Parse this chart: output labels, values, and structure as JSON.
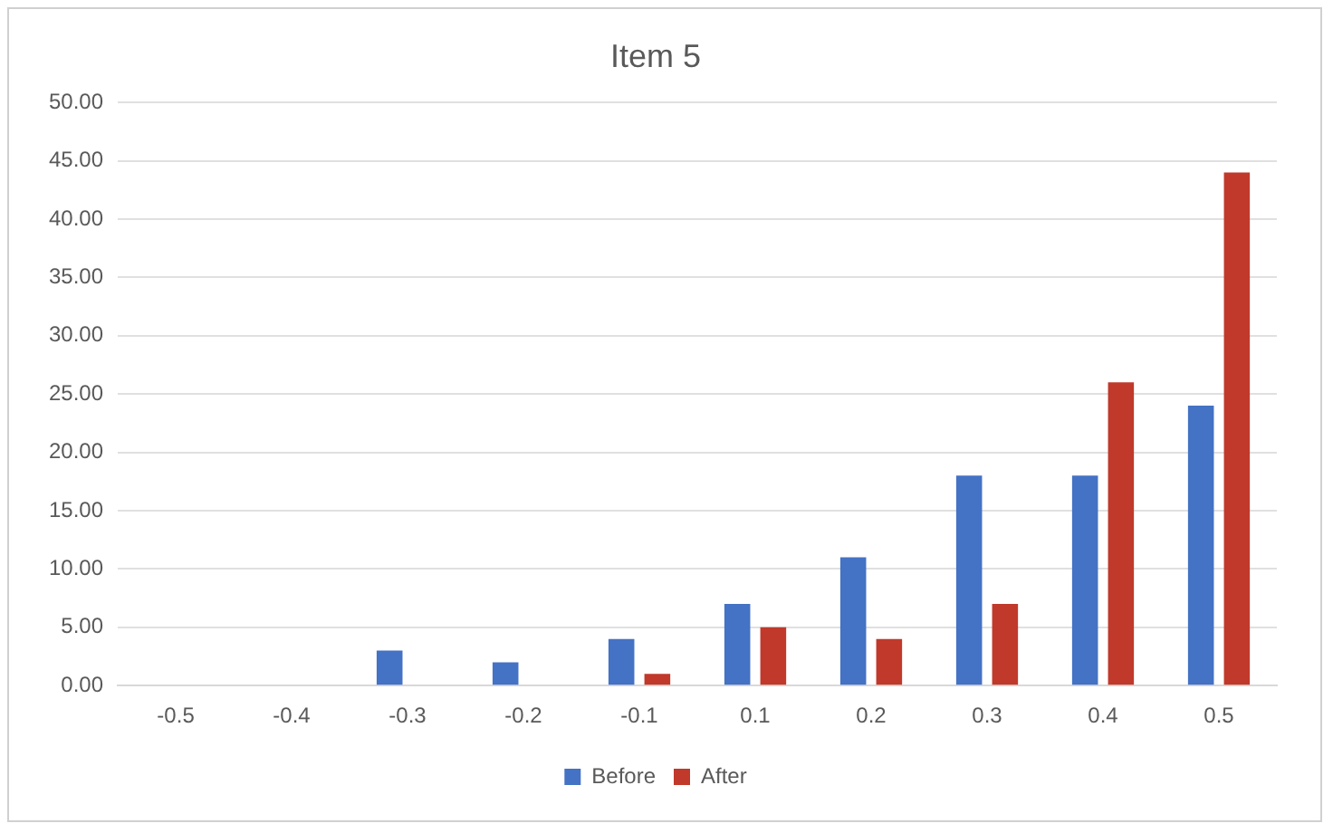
{
  "chart_data": {
    "type": "bar",
    "title": "Item 5",
    "categories": [
      "-0.5",
      "-0.4",
      "-0.3",
      "-0.2",
      "-0.1",
      "0.1",
      "0.2",
      "0.3",
      "0.4",
      "0.5"
    ],
    "series": [
      {
        "name": "Before",
        "color": "#4472c4",
        "values": [
          0,
          0,
          3,
          2,
          4,
          7,
          11,
          18,
          18,
          24
        ]
      },
      {
        "name": "After",
        "color": "#c0392b",
        "values": [
          0,
          0,
          0,
          0,
          1,
          5,
          4,
          7,
          26,
          44
        ]
      }
    ],
    "ylim": [
      0,
      50
    ],
    "yticks": [
      {
        "value": 0,
        "label": "0.00"
      },
      {
        "value": 5,
        "label": "5.00"
      },
      {
        "value": 10,
        "label": "10.00"
      },
      {
        "value": 15,
        "label": "15.00"
      },
      {
        "value": 20,
        "label": "20.00"
      },
      {
        "value": 25,
        "label": "25.00"
      },
      {
        "value": 30,
        "label": "30.00"
      },
      {
        "value": 35,
        "label": "35.00"
      },
      {
        "value": 40,
        "label": "40.00"
      },
      {
        "value": 45,
        "label": "45.00"
      },
      {
        "value": 50,
        "label": "50.00"
      }
    ],
    "grid": "y",
    "legend": "bottom"
  }
}
